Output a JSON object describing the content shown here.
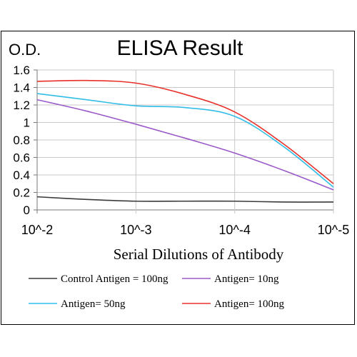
{
  "chart_data": {
    "type": "line",
    "title": "ELISA Result",
    "ylabel": "O.D.",
    "xlabel": "Serial Dilutions  of Antibody",
    "x_ticks": [
      "10^-2",
      "10^-3",
      "10^-4",
      "10^-5"
    ],
    "x": [
      0,
      0.5,
      1,
      1.5,
      2,
      2.5,
      3
    ],
    "ylim": [
      0,
      1.6
    ],
    "y_ticks": [
      "0",
      "0.2",
      "0.4",
      "0.6",
      "0.8",
      "1",
      "1.2",
      "1.4",
      "1.6"
    ],
    "grid": true,
    "legend_position": "bottom",
    "series": [
      {
        "name": "Control Antigen = 100ng",
        "color": "#3a3a3a",
        "values": [
          0.15,
          0.12,
          0.1,
          0.1,
          0.1,
          0.09,
          0.09
        ]
      },
      {
        "name": "Antigen= 10ng",
        "color": "#9b59c9",
        "values": [
          1.26,
          1.13,
          0.98,
          0.82,
          0.65,
          0.45,
          0.23
        ]
      },
      {
        "name": "Antigen= 50ng",
        "color": "#30bde8",
        "values": [
          1.33,
          1.26,
          1.19,
          1.17,
          1.07,
          0.72,
          0.26
        ]
      },
      {
        "name": "Antigen= 100ng",
        "color": "#e8302a",
        "values": [
          1.47,
          1.48,
          1.45,
          1.32,
          1.12,
          0.75,
          0.3
        ]
      }
    ]
  }
}
